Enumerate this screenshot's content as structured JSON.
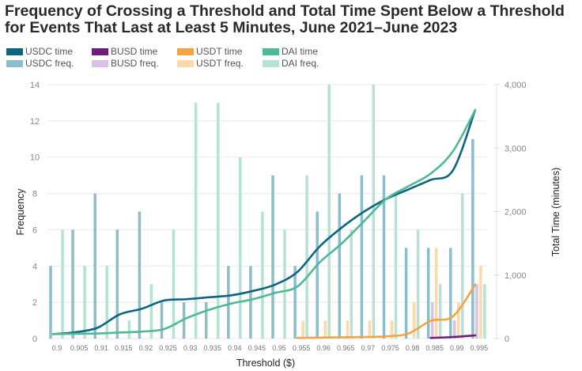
{
  "chart_data": {
    "type": "bar",
    "title_line1": "Frequency of Crossing a Threshold and Total Time Spent Below a Threshold",
    "title_line2": "for Events That Last at Least 5 Minutes, June 2021–June 2023",
    "xlabel": "Threshold ($)",
    "ylabel": "Frequency",
    "y2label": "Total Time (minutes)",
    "ylim": [
      0,
      14
    ],
    "y2lim": [
      0,
      4000
    ],
    "yticks": [
      "0",
      "2",
      "4",
      "6",
      "8",
      "10",
      "12",
      "14"
    ],
    "y2ticks": [
      "0",
      "1,000",
      "2,000",
      "3,000",
      "4,000"
    ],
    "categories": [
      "0.9",
      "0.905",
      "0.91",
      "0.915",
      "0.92",
      "0.925",
      "0.93",
      "0.935",
      "0.94",
      "0.945",
      "0.95",
      "0.955",
      "0.96",
      "0.965",
      "0.97",
      "0.975",
      "0.98",
      "0.985",
      "0.99",
      "0.995"
    ],
    "legend": [
      {
        "label": "USDC time",
        "color": "#0e6580"
      },
      {
        "label": "BUSD time",
        "color": "#6e1d7c"
      },
      {
        "label": "USDT time",
        "color": "#f2a444"
      },
      {
        "label": "DAI time",
        "color": "#4fb896"
      },
      {
        "label": "USDC freq.",
        "color": "#8dbccb"
      },
      {
        "label": "BUSD freq.",
        "color": "#d9c1e2"
      },
      {
        "label": "USDT freq.",
        "color": "#fcd8ad"
      },
      {
        "label": "DAI freq.",
        "color": "#b6e2d4"
      }
    ],
    "freq_series": [
      {
        "name": "USDC freq.",
        "color": "#8dbccb",
        "values": [
          4,
          6,
          8,
          6,
          7,
          2,
          2,
          2,
          4,
          4,
          9,
          4,
          7,
          8,
          9,
          9,
          5,
          5,
          5,
          11
        ]
      },
      {
        "name": "BUSD freq.",
        "color": "#d9c1e2",
        "values": [
          0,
          0,
          0,
          0,
          0,
          0,
          0,
          0,
          0,
          0,
          0,
          0,
          0,
          0,
          0,
          0,
          0,
          2,
          1,
          3
        ]
      },
      {
        "name": "USDT freq.",
        "color": "#fcd8ad",
        "values": [
          0,
          0,
          0,
          0,
          0,
          0,
          0,
          0,
          0,
          0,
          0,
          1,
          1,
          1,
          1,
          1,
          2,
          5,
          2,
          4
        ]
      },
      {
        "name": "DAI freq.",
        "color": "#b6e2d4",
        "values": [
          6,
          4,
          4,
          1,
          3,
          6,
          13,
          13,
          10,
          7,
          6,
          9,
          14,
          6,
          14,
          8,
          6,
          3,
          8,
          3
        ]
      }
    ],
    "time_series": [
      {
        "name": "USDC time",
        "color": "#0e6580",
        "values": [
          70,
          100,
          170,
          380,
          470,
          600,
          620,
          650,
          680,
          750,
          850,
          1050,
          1450,
          1750,
          2000,
          2200,
          2350,
          2500,
          2650,
          3600
        ]
      },
      {
        "name": "DAI time",
        "color": "#4fb896",
        "values": [
          70,
          75,
          80,
          95,
          110,
          150,
          320,
          450,
          550,
          620,
          720,
          820,
          1200,
          1500,
          1850,
          2200,
          2400,
          2600,
          2950,
          3600
        ]
      },
      {
        "name": "USDT time",
        "color": "#f2a444",
        "values": [
          null,
          null,
          null,
          null,
          null,
          null,
          null,
          null,
          null,
          null,
          null,
          10,
          15,
          20,
          25,
          35,
          80,
          280,
          350,
          850
        ]
      },
      {
        "name": "BUSD time",
        "color": "#6e1d7c",
        "values": [
          null,
          null,
          null,
          null,
          null,
          null,
          null,
          null,
          null,
          null,
          null,
          null,
          null,
          null,
          null,
          null,
          null,
          10,
          25,
          50
        ]
      }
    ]
  }
}
